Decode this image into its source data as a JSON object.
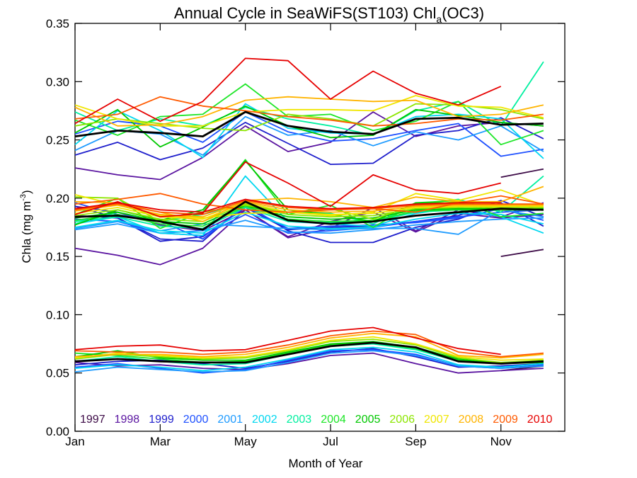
{
  "chart_data": {
    "type": "line",
    "title": "Annual Cycle in SeaWiFS(ST103) Chl",
    "title_subscript": "a",
    "title_suffix": "(OC3)",
    "xlabel": "Month of Year",
    "ylabel": "Chla (mg m",
    "ylabel_superscript": "-3",
    "ylabel_suffix": ")",
    "xlim": [
      1,
      12.5
    ],
    "ylim": [
      0.0,
      0.35
    ],
    "grid": false,
    "x_ticks": [
      {
        "value": 1,
        "label": "Jan"
      },
      {
        "value": 3,
        "label": "Mar"
      },
      {
        "value": 5,
        "label": "May"
      },
      {
        "value": 7,
        "label": "Jul"
      },
      {
        "value": 9,
        "label": "Sep"
      },
      {
        "value": 11,
        "label": "Nov"
      }
    ],
    "y_ticks": [
      {
        "value": 0.0,
        "label": "0.00"
      },
      {
        "value": 0.05,
        "label": "0.05"
      },
      {
        "value": 0.1,
        "label": "0.10"
      },
      {
        "value": 0.15,
        "label": "0.15"
      },
      {
        "value": 0.2,
        "label": "0.20"
      },
      {
        "value": 0.25,
        "label": "0.25"
      },
      {
        "value": 0.3,
        "label": "0.30"
      },
      {
        "value": 0.35,
        "label": "0.35"
      }
    ],
    "x": [
      1,
      2,
      3,
      4,
      5,
      6,
      7,
      8,
      9,
      10,
      11,
      12
    ],
    "legend_position": "bottom",
    "series": [
      {
        "name": "1997",
        "color": "#3c0a46",
        "upper": [
          null,
          null,
          null,
          null,
          null,
          null,
          null,
          null,
          null,
          null,
          0.218,
          0.225
        ],
        "median": [
          null,
          null,
          null,
          null,
          null,
          null,
          null,
          null,
          null,
          null,
          null,
          null
        ],
        "lower": [
          null,
          null,
          null,
          null,
          null,
          null,
          null,
          null,
          null,
          null,
          0.15,
          0.156
        ],
        "bottom": [
          null,
          null,
          null,
          null,
          null,
          null,
          null,
          null,
          null,
          null,
          0.052,
          0.056
        ]
      },
      {
        "name": "1998",
        "color": "#5a14a0",
        "upper": [
          0.226,
          0.22,
          0.216,
          0.235,
          0.262,
          0.24,
          0.248,
          0.274,
          0.253,
          0.262,
          0.265,
          0.262
        ],
        "median": [
          0.193,
          0.188,
          0.177,
          0.172,
          0.19,
          0.167,
          0.18,
          0.188,
          0.171,
          0.187,
          0.183,
          0.186
        ],
        "lower": [
          0.157,
          0.151,
          0.143,
          0.157,
          0.19,
          0.166,
          0.174,
          0.192,
          0.172,
          0.19,
          0.184,
          0.196
        ],
        "bottom": [
          0.059,
          0.056,
          0.057,
          0.054,
          0.053,
          0.058,
          0.065,
          0.067,
          0.058,
          0.05,
          0.052,
          0.054
        ]
      },
      {
        "name": "1999",
        "color": "#1e1ecc",
        "upper": [
          0.237,
          0.248,
          0.233,
          0.243,
          0.265,
          0.247,
          0.229,
          0.23,
          0.254,
          0.258,
          0.269,
          0.251
        ],
        "median": [
          0.193,
          0.183,
          0.165,
          0.163,
          0.195,
          0.172,
          0.162,
          0.162,
          0.175,
          0.182,
          0.196,
          0.176
        ],
        "lower": [
          0.185,
          0.183,
          0.163,
          0.167,
          0.192,
          0.173,
          0.175,
          0.176,
          0.18,
          0.185,
          0.198,
          0.184
        ],
        "bottom": [
          0.057,
          0.06,
          0.061,
          0.058,
          0.054,
          0.06,
          0.068,
          0.071,
          0.064,
          0.055,
          0.056,
          0.058
        ]
      },
      {
        "name": "2000",
        "color": "#1e50ff",
        "upper": [
          0.255,
          0.266,
          0.262,
          0.248,
          0.274,
          0.257,
          0.249,
          0.251,
          0.258,
          0.264,
          0.236,
          0.242
        ],
        "median": [
          0.196,
          0.186,
          0.18,
          0.165,
          0.193,
          0.174,
          0.176,
          0.177,
          0.179,
          0.183,
          0.191,
          0.181
        ],
        "lower": [
          0.182,
          0.18,
          0.17,
          0.168,
          0.186,
          0.17,
          0.172,
          0.175,
          0.18,
          0.184,
          0.188,
          0.19
        ],
        "bottom": [
          0.055,
          0.058,
          0.054,
          0.05,
          0.053,
          0.061,
          0.069,
          0.07,
          0.066,
          0.056,
          0.054,
          0.057
        ]
      },
      {
        "name": "2001",
        "color": "#1e9bff",
        "upper": [
          0.241,
          0.258,
          0.255,
          0.237,
          0.27,
          0.254,
          0.258,
          0.245,
          0.257,
          0.25,
          0.262,
          0.24
        ],
        "median": [
          0.174,
          0.18,
          0.172,
          0.178,
          0.176,
          0.174,
          0.173,
          0.174,
          0.174,
          0.169,
          0.19,
          0.184
        ],
        "lower": [
          0.173,
          0.178,
          0.17,
          0.172,
          0.181,
          0.171,
          0.17,
          0.173,
          0.177,
          0.18,
          0.182,
          0.183
        ],
        "bottom": [
          0.051,
          0.055,
          0.053,
          0.051,
          0.052,
          0.059,
          0.067,
          0.069,
          0.065,
          0.056,
          0.054,
          0.056
        ]
      },
      {
        "name": "2002",
        "color": "#00d7f0",
        "upper": [
          0.246,
          0.275,
          0.258,
          0.235,
          0.281,
          0.26,
          0.256,
          0.255,
          0.27,
          0.272,
          0.268,
          0.234
        ],
        "median": [
          0.178,
          0.184,
          0.17,
          0.168,
          0.219,
          0.18,
          0.178,
          0.176,
          0.187,
          0.192,
          0.184,
          0.17
        ],
        "lower": [
          0.175,
          0.181,
          0.172,
          0.17,
          0.188,
          0.176,
          0.174,
          0.175,
          0.182,
          0.187,
          0.186,
          0.178
        ],
        "bottom": [
          0.054,
          0.057,
          0.055,
          0.052,
          0.055,
          0.062,
          0.07,
          0.072,
          0.068,
          0.057,
          0.055,
          0.058
        ]
      },
      {
        "name": "2003",
        "color": "#00f0a0",
        "upper": [
          0.274,
          0.258,
          0.268,
          0.262,
          0.278,
          0.268,
          0.262,
          0.254,
          0.275,
          0.283,
          0.262,
          0.317
        ],
        "median": [
          0.178,
          0.188,
          0.18,
          0.186,
          0.196,
          0.188,
          0.187,
          0.178,
          0.195,
          0.199,
          0.188,
          0.219
        ],
        "lower": [
          0.18,
          0.184,
          0.176,
          0.174,
          0.192,
          0.18,
          0.179,
          0.18,
          0.188,
          0.19,
          0.19,
          0.192
        ],
        "bottom": [
          0.06,
          0.064,
          0.06,
          0.057,
          0.058,
          0.066,
          0.073,
          0.075,
          0.07,
          0.06,
          0.058,
          0.061
        ]
      },
      {
        "name": "2004",
        "color": "#1ee628",
        "upper": [
          0.267,
          0.254,
          0.27,
          0.272,
          0.298,
          0.27,
          0.272,
          0.258,
          0.266,
          0.283,
          0.246,
          0.258
        ],
        "median": [
          0.186,
          0.2,
          0.174,
          0.188,
          0.233,
          0.186,
          0.194,
          0.175,
          0.196,
          0.198,
          0.184,
          0.187
        ],
        "lower": [
          0.181,
          0.186,
          0.178,
          0.176,
          0.193,
          0.182,
          0.18,
          0.181,
          0.189,
          0.19,
          0.19,
          0.19
        ],
        "bottom": [
          0.067,
          0.065,
          0.062,
          0.059,
          0.06,
          0.067,
          0.074,
          0.076,
          0.071,
          0.061,
          0.059,
          0.06
        ]
      },
      {
        "name": "2005",
        "color": "#00c800",
        "upper": [
          0.256,
          0.276,
          0.244,
          0.261,
          0.279,
          0.262,
          0.252,
          0.254,
          0.276,
          0.271,
          0.265,
          0.262
        ],
        "median": [
          0.177,
          0.19,
          0.181,
          0.19,
          0.232,
          0.19,
          0.186,
          0.18,
          0.196,
          0.196,
          0.19,
          0.19
        ],
        "lower": [
          0.183,
          0.188,
          0.18,
          0.178,
          0.194,
          0.184,
          0.182,
          0.183,
          0.19,
          0.191,
          0.191,
          0.191
        ],
        "bottom": [
          0.064,
          0.069,
          0.063,
          0.061,
          0.061,
          0.068,
          0.075,
          0.077,
          0.072,
          0.062,
          0.058,
          0.059
        ]
      },
      {
        "name": "2006",
        "color": "#8ce600",
        "upper": [
          0.262,
          0.268,
          0.264,
          0.26,
          0.258,
          0.272,
          0.268,
          0.262,
          0.281,
          0.28,
          0.276,
          0.268
        ],
        "median": [
          0.201,
          0.2,
          0.18,
          0.188,
          0.194,
          0.188,
          0.191,
          0.182,
          0.194,
          0.197,
          0.19,
          0.192
        ],
        "lower": [
          0.185,
          0.19,
          0.182,
          0.18,
          0.195,
          0.186,
          0.184,
          0.185,
          0.191,
          0.192,
          0.192,
          0.192
        ],
        "bottom": [
          0.062,
          0.066,
          0.064,
          0.062,
          0.063,
          0.069,
          0.077,
          0.079,
          0.074,
          0.063,
          0.059,
          0.061
        ]
      },
      {
        "name": "2007",
        "color": "#f0e600",
        "upper": [
          0.28,
          0.268,
          0.262,
          0.262,
          0.274,
          0.276,
          0.276,
          0.275,
          0.288,
          0.279,
          0.278,
          0.269
        ],
        "median": [
          0.203,
          0.194,
          0.185,
          0.183,
          0.187,
          0.188,
          0.185,
          0.188,
          0.204,
          0.198,
          0.207,
          0.194
        ],
        "lower": [
          0.187,
          0.192,
          0.184,
          0.182,
          0.196,
          0.188,
          0.186,
          0.187,
          0.192,
          0.193,
          0.193,
          0.193
        ],
        "bottom": [
          0.063,
          0.067,
          0.065,
          0.063,
          0.064,
          0.07,
          0.078,
          0.081,
          0.075,
          0.064,
          0.061,
          0.062
        ]
      },
      {
        "name": "2008",
        "color": "#ffb400",
        "upper": [
          0.278,
          0.262,
          0.263,
          0.27,
          0.284,
          0.287,
          0.285,
          0.283,
          0.284,
          0.27,
          0.272,
          0.28
        ],
        "median": [
          0.197,
          0.196,
          0.188,
          0.18,
          0.198,
          0.2,
          0.197,
          0.192,
          0.201,
          0.197,
          0.197,
          0.21
        ],
        "lower": [
          0.189,
          0.194,
          0.186,
          0.184,
          0.197,
          0.19,
          0.188,
          0.189,
          0.193,
          0.194,
          0.194,
          0.194
        ],
        "bottom": [
          0.064,
          0.066,
          0.066,
          0.064,
          0.066,
          0.072,
          0.08,
          0.084,
          0.081,
          0.065,
          0.063,
          0.066
        ]
      },
      {
        "name": "2009",
        "color": "#ff5a00",
        "upper": [
          0.268,
          0.272,
          0.287,
          0.279,
          0.275,
          0.27,
          0.267,
          0.262,
          0.264,
          0.268,
          0.267,
          0.272
        ],
        "median": [
          0.195,
          0.199,
          0.204,
          0.195,
          0.19,
          0.188,
          0.19,
          0.191,
          0.188,
          0.196,
          0.202,
          0.195
        ],
        "lower": [
          0.19,
          0.195,
          0.188,
          0.186,
          0.198,
          0.192,
          0.19,
          0.191,
          0.194,
          0.195,
          0.195,
          0.195
        ],
        "bottom": [
          0.069,
          0.068,
          0.068,
          0.066,
          0.068,
          0.074,
          0.082,
          0.086,
          0.083,
          0.068,
          0.064,
          0.067
        ]
      },
      {
        "name": "2010",
        "color": "#e60000",
        "upper": [
          0.264,
          0.285,
          0.266,
          0.283,
          0.32,
          0.318,
          0.285,
          0.309,
          0.29,
          0.28,
          0.296,
          null
        ],
        "median": [
          0.186,
          0.197,
          0.184,
          0.187,
          0.231,
          0.213,
          0.193,
          0.22,
          0.207,
          0.204,
          0.213,
          null
        ],
        "lower": [
          0.191,
          0.196,
          0.19,
          0.188,
          0.199,
          0.193,
          0.191,
          0.192,
          0.195,
          0.196,
          0.196,
          null
        ],
        "bottom": [
          0.07,
          0.073,
          0.074,
          0.069,
          0.07,
          0.078,
          0.086,
          0.089,
          0.08,
          0.071,
          0.066,
          null
        ]
      }
    ],
    "mean_series": {
      "color": "#000000",
      "upper": [
        0.253,
        0.258,
        0.256,
        0.253,
        0.274,
        0.262,
        0.257,
        0.255,
        0.268,
        0.269,
        0.263,
        0.264
      ],
      "median": [
        0.184,
        0.185,
        0.18,
        0.173,
        0.197,
        0.181,
        0.178,
        0.18,
        0.185,
        0.188,
        0.191,
        0.19
      ],
      "lower": [
        null,
        null,
        null,
        null,
        null,
        null,
        null,
        null,
        null,
        null,
        null,
        null
      ],
      "bottom": [
        0.06,
        0.062,
        0.06,
        0.059,
        0.059,
        0.066,
        0.073,
        0.076,
        0.072,
        0.06,
        0.058,
        0.06
      ]
    }
  }
}
